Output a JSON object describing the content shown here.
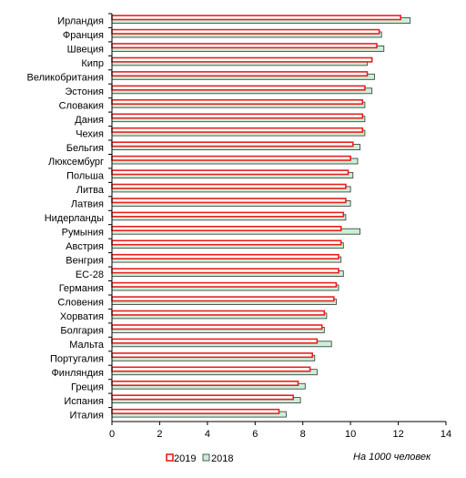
{
  "chart_data": {
    "type": "bar",
    "orientation": "horizontal",
    "categories": [
      "Ирландия",
      "Франция",
      "Швеция",
      "Кипр",
      "Великобритания",
      "Эстония",
      "Словакия",
      "Дания",
      "Чехия",
      "Бельгия",
      "Люксембург",
      "Польша",
      "Литва",
      "Латвия",
      "Нидерланды",
      "Румыния",
      "Австрия",
      "Венгрия",
      "ЕС-28",
      "Германия",
      "Словения",
      "Хорватия",
      "Болгария",
      "Мальта",
      "Португалия",
      "Финляндия",
      "Греция",
      "Испания",
      "Италия"
    ],
    "series": [
      {
        "name": "2019",
        "values": [
          12.1,
          11.2,
          11.1,
          10.9,
          10.7,
          10.6,
          10.5,
          10.5,
          10.5,
          10.1,
          10.0,
          9.9,
          9.8,
          9.8,
          9.7,
          9.6,
          9.6,
          9.5,
          9.5,
          9.4,
          9.3,
          8.9,
          8.8,
          8.6,
          8.4,
          8.3,
          7.8,
          7.6,
          7.0
        ]
      },
      {
        "name": "2018",
        "values": [
          12.5,
          11.3,
          11.4,
          10.7,
          11.0,
          10.9,
          10.6,
          10.6,
          10.6,
          10.4,
          10.3,
          10.1,
          10.0,
          10.0,
          9.8,
          10.4,
          9.7,
          9.6,
          9.7,
          9.5,
          9.4,
          9.0,
          8.9,
          9.2,
          8.5,
          8.6,
          8.1,
          7.9,
          7.3
        ]
      }
    ],
    "xlim": [
      0,
      14
    ],
    "xticks": [
      "0",
      "2",
      "4",
      "6",
      "8",
      "10",
      "12",
      "14"
    ],
    "unit_note": "На 1000 человек",
    "legend_position": "bottom",
    "grid": false,
    "colors": {
      "2019_edge": "#e8201e",
      "2019_fill": "#ffffff",
      "2018_edge": "#333333",
      "2018_fill": "#c8f0d8"
    }
  }
}
